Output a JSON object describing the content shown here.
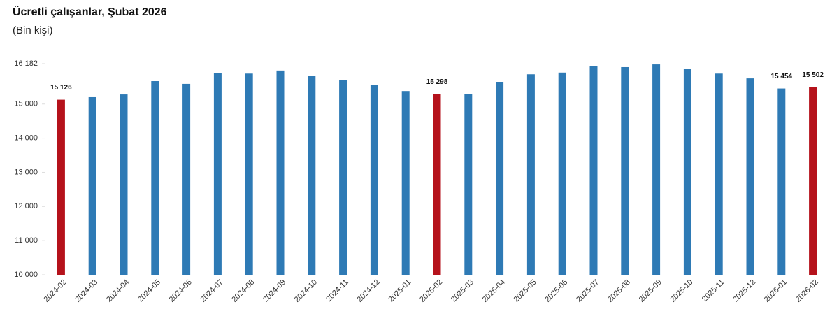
{
  "chart_data": {
    "type": "bar",
    "title": "Ücretli çalışanlar, Şubat 2026",
    "subtitle": "(Bin kişi)",
    "categories": [
      "2024-02",
      "2024-03",
      "2024-04",
      "2024-05",
      "2024-06",
      "2024-07",
      "2024-08",
      "2024-09",
      "2024-10",
      "2024-11",
      "2024-12",
      "2025-01",
      "2025-02",
      "2025-03",
      "2025-04",
      "2025-05",
      "2025-06",
      "2025-07",
      "2025-08",
      "2025-09",
      "2025-10",
      "2025-11",
      "2025-12",
      "2026-01",
      "2026-02"
    ],
    "values": [
      15126,
      15200,
      15280,
      15670,
      15590,
      15900,
      15890,
      15980,
      15830,
      15710,
      15550,
      15380,
      15298,
      15300,
      15630,
      15870,
      15920,
      16100,
      16080,
      16160,
      16020,
      15890,
      15750,
      15454,
      15502
    ],
    "value_labels": [
      "15 126",
      null,
      null,
      null,
      null,
      null,
      null,
      null,
      null,
      null,
      null,
      null,
      "15 298",
      null,
      null,
      null,
      null,
      null,
      null,
      null,
      null,
      null,
      null,
      "15 454",
      "15 502"
    ],
    "colors": [
      "#b5121b",
      "#2e7ab5",
      "#2e7ab5",
      "#2e7ab5",
      "#2e7ab5",
      "#2e7ab5",
      "#2e7ab5",
      "#2e7ab5",
      "#2e7ab5",
      "#2e7ab5",
      "#2e7ab5",
      "#2e7ab5",
      "#b5121b",
      "#2e7ab5",
      "#2e7ab5",
      "#2e7ab5",
      "#2e7ab5",
      "#2e7ab5",
      "#2e7ab5",
      "#2e7ab5",
      "#2e7ab5",
      "#2e7ab5",
      "#2e7ab5",
      "#2e7ab5",
      "#b5121b"
    ],
    "ylim": [
      10000,
      16182
    ],
    "yticks": [
      {
        "value": 10000,
        "label": "10 000"
      },
      {
        "value": 11000,
        "label": "11 000"
      },
      {
        "value": 12000,
        "label": "12 000"
      },
      {
        "value": 13000,
        "label": "13 000"
      },
      {
        "value": 14000,
        "label": "14 000"
      },
      {
        "value": 15000,
        "label": "15 000"
      },
      {
        "value": 16182,
        "label": "16 182"
      }
    ],
    "grid": false
  }
}
